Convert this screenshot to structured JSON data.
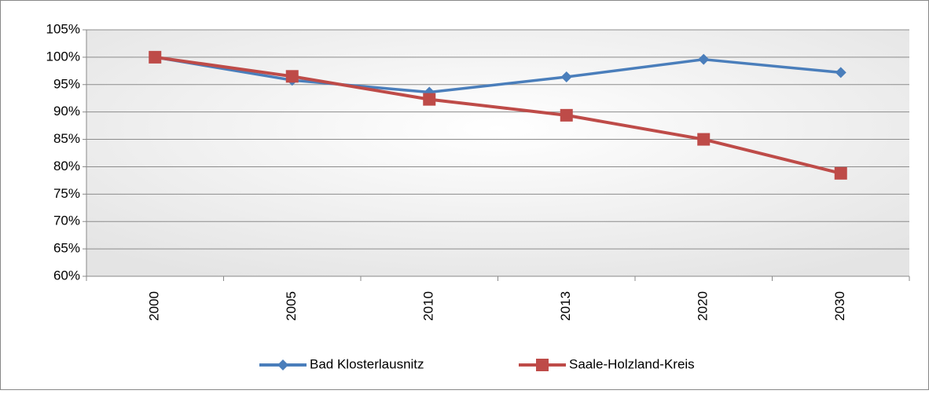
{
  "chart_data": {
    "type": "line",
    "categories": [
      "2000",
      "2005",
      "2010",
      "2013",
      "2020",
      "2030"
    ],
    "series": [
      {
        "name": "Bad Klosterlausnitz",
        "color": "#4a7ebb",
        "marker": "diamond",
        "values": [
          100,
          95.8,
          93.6,
          96.4,
          99.6,
          97.2
        ]
      },
      {
        "name": "Saale-Holzland-Kreis",
        "color": "#be4b48",
        "marker": "square",
        "values": [
          100,
          96.5,
          92.3,
          89.4,
          85,
          78.8
        ]
      }
    ],
    "ylim": [
      60,
      105
    ],
    "yticks": [
      {
        "value": 60,
        "label": "60%"
      },
      {
        "value": 65,
        "label": "65%"
      },
      {
        "value": 70,
        "label": "70%"
      },
      {
        "value": 75,
        "label": "75%"
      },
      {
        "value": 80,
        "label": "80%"
      },
      {
        "value": 85,
        "label": "85%"
      },
      {
        "value": 90,
        "label": "90%"
      },
      {
        "value": 95,
        "label": "95%"
      },
      {
        "value": 100,
        "label": "100%"
      },
      {
        "value": 105,
        "label": "105%"
      }
    ],
    "grid": true,
    "legend": "bottom"
  }
}
